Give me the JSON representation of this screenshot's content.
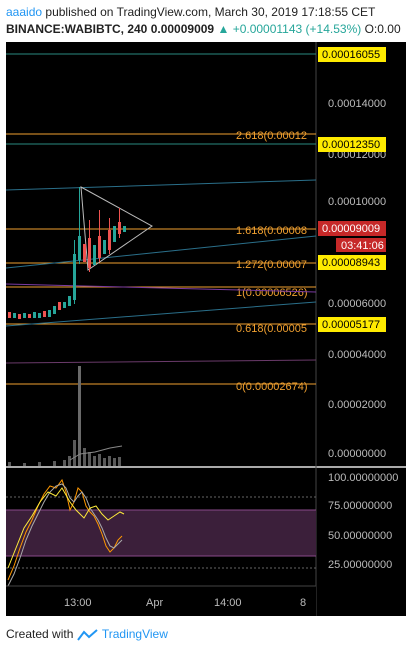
{
  "header": {
    "author": "aaaido",
    "published_text": "published on TradingView.com, March 30, 2019 17:18:55 CET",
    "symbol": "BINANCE:WABIBTC, 240",
    "last_price": "0.00009009",
    "change": "+0.00001143 (+14.53%)",
    "ohlc_prefix": "O:0.00"
  },
  "price_axis": {
    "ticks": [
      "0.00014000",
      "0.00012000",
      "0.00010000",
      "0.00006000",
      "0.00004000",
      "0.00002000",
      "0.00000000"
    ],
    "badges": {
      "top_level": "0.00016055",
      "upper_level": "0.00012350",
      "last_price": "0.00009009",
      "countdown": "03:41:06",
      "lower_level": "0.00008943",
      "support_level": "0.00005177"
    }
  },
  "fib_levels": [
    {
      "label": "2.618(0.00012"
    },
    {
      "label": "1.618(0.00008"
    },
    {
      "label": "1.272(0.00007"
    },
    {
      "label": "1(0.00006526)"
    },
    {
      "label": "0.618(0.00005"
    },
    {
      "label": "0(0.00002674)"
    }
  ],
  "oscillator_axis": {
    "ticks": [
      "100.00000000",
      "75.00000000",
      "50.00000000",
      "25.00000000"
    ]
  },
  "time_axis": {
    "ticks": [
      "13:00",
      "Apr",
      "14:00",
      "8"
    ]
  },
  "footer": {
    "created_with": "Created with",
    "brand": "TradingView"
  },
  "colors": {
    "fib": "#f0a030",
    "teal_line": "#26a69a",
    "up_candle": "#26a69a",
    "down_candle": "#ef5350",
    "badge_yellow": "#ffeb00",
    "badge_red": "#c62828",
    "rsi_band": "#3b1f3a",
    "brand_blue": "#2196f3"
  }
}
